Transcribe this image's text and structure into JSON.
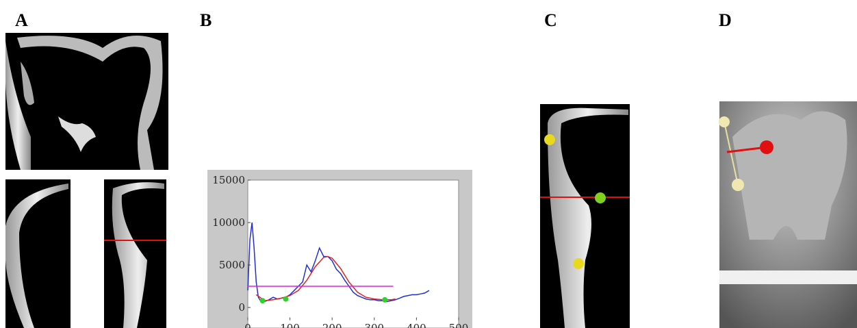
{
  "panels": [
    {
      "label": "A"
    },
    {
      "label": "B"
    },
    {
      "label": "C"
    },
    {
      "label": "D"
    }
  ],
  "chart_data": {
    "type": "line",
    "xlim": [
      0,
      500
    ],
    "ylim": [
      -1500,
      15000
    ],
    "xticks": [
      0,
      100,
      200,
      300,
      400,
      500
    ],
    "yticks": [
      0,
      5000,
      10000,
      15000
    ],
    "series": [
      {
        "mode": "line",
        "color": "#1f2fd8",
        "x": [
          0,
          5,
          10,
          15,
          20,
          25,
          30,
          40,
          50,
          60,
          70,
          80,
          90,
          100,
          110,
          120,
          130,
          140,
          150,
          160,
          170,
          180,
          190,
          200,
          210,
          220,
          230,
          240,
          250,
          260,
          270,
          280,
          290,
          300,
          310,
          320,
          330,
          340,
          350,
          360,
          370,
          380,
          390,
          400,
          410,
          420,
          430
        ],
        "values": [
          2000,
          8000,
          10000,
          7000,
          3000,
          1200,
          800,
          700,
          900,
          1200,
          1000,
          1100,
          1200,
          1500,
          2000,
          2500,
          3000,
          5000,
          4200,
          5500,
          7000,
          6000,
          6000,
          5500,
          4500,
          4000,
          3200,
          2500,
          1800,
          1400,
          1200,
          1000,
          900,
          900,
          800,
          800,
          700,
          800,
          900,
          1100,
          1300,
          1400,
          1500,
          1500,
          1600,
          1700,
          2000
        ]
      },
      {
        "mode": "line",
        "color": "#e02020",
        "x": [
          20,
          40,
          60,
          80,
          100,
          120,
          140,
          160,
          180,
          190,
          200,
          220,
          240,
          260,
          280,
          300,
          320,
          340,
          350
        ],
        "values": [
          1500,
          800,
          900,
          1100,
          1400,
          2000,
          3200,
          4800,
          5900,
          6000,
          5800,
          4600,
          3000,
          1800,
          1200,
          1000,
          900,
          900,
          1000
        ]
      },
      {
        "mode": "line",
        "color": "#e020e0",
        "x": [
          0,
          345
        ],
        "values": [
          2500,
          2500
        ]
      },
      {
        "mode": "markers",
        "color": "#30d030",
        "x": [
          35,
          90,
          325
        ],
        "values": [
          800,
          1000,
          900
        ]
      }
    ]
  }
}
